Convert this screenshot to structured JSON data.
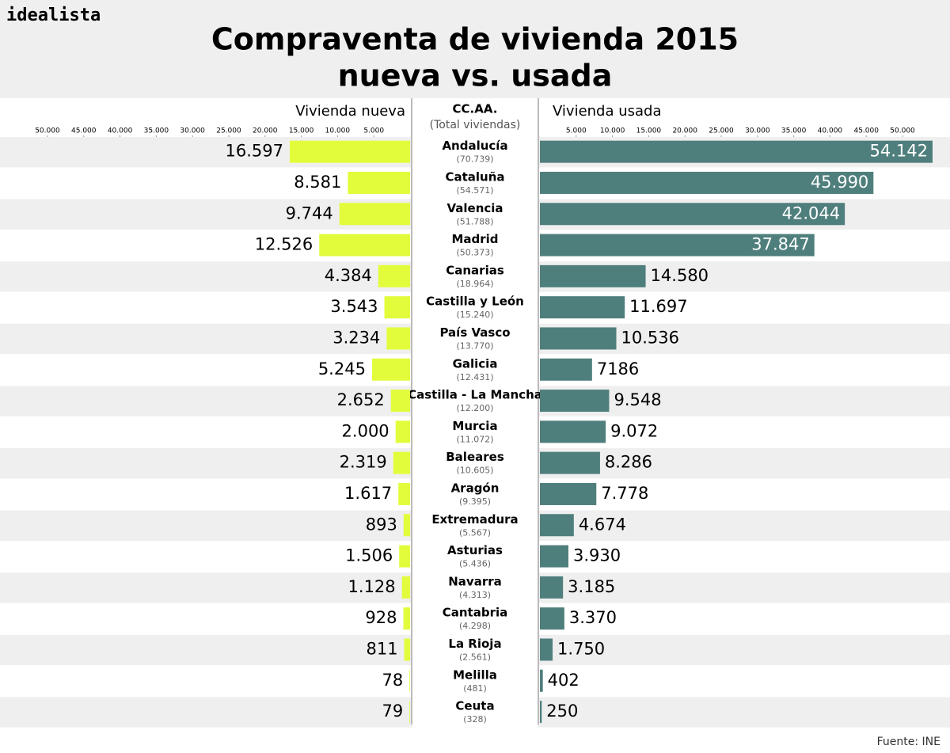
{
  "brand": "idealista",
  "source": "Fuente: INE",
  "chart_data": {
    "type": "bar",
    "orientation": "horizontal",
    "title": "Compraventa de vivienda 2015",
    "subtitle": "nueva vs. usada",
    "category_header": "CC.AA.",
    "totals_header": "(Total viviendas)",
    "categories": [
      "Andalucía",
      "Cataluña",
      "Valencia",
      "Madrid",
      "Canarias",
      "Castilla y León",
      "País Vasco",
      "Galicia",
      "Castilla - La Mancha",
      "Murcia",
      "Baleares",
      "Aragón",
      "Extremadura",
      "Asturias",
      "Navarra",
      "Cantabria",
      "La Rioja",
      "Melilla",
      "Ceuta"
    ],
    "totals": [
      "(70.739)",
      "(54.571)",
      "(51.788)",
      "(50.373)",
      "(18.964)",
      "(15.240)",
      "(13.770)",
      "(12.431)",
      "(12.200)",
      "(11.072)",
      "(10.605)",
      "(9.395)",
      "(5.567)",
      "(5.436)",
      "(4.313)",
      "(4.298)",
      "(2.561)",
      "(481)",
      "(328)"
    ],
    "series": [
      {
        "name": "Vivienda nueva",
        "color": "#e2fc3b",
        "side": "left",
        "values": [
          16597,
          8581,
          9744,
          12526,
          4384,
          3543,
          3234,
          5245,
          2652,
          2000,
          2319,
          1617,
          893,
          1506,
          1128,
          928,
          811,
          78,
          79
        ],
        "value_labels": [
          "16.597",
          "8.581",
          "9.744",
          "12.526",
          "4.384",
          "3.543",
          "3.234",
          "5.245",
          "2.652",
          "2.000",
          "2.319",
          "1.617",
          "893",
          "1.506",
          "1.128",
          "928",
          "811",
          "78",
          "79"
        ]
      },
      {
        "name": "Vivienda usada",
        "color": "#4f7f7d",
        "side": "right",
        "values": [
          54142,
          45990,
          42044,
          37847,
          14580,
          11697,
          10536,
          7186,
          9548,
          9072,
          8286,
          7778,
          4674,
          3930,
          3185,
          3370,
          1750,
          402,
          250
        ],
        "value_labels": [
          "54.142",
          "45.990",
          "42.044",
          "37.847",
          "14.580",
          "11.697",
          "10.536",
          "7186",
          "9.548",
          "9.072",
          "8.286",
          "7.778",
          "4.674",
          "3.930",
          "3.185",
          "3.370",
          "1.750",
          "402",
          "250"
        ]
      }
    ],
    "xlim": [
      0,
      56000
    ],
    "xticks": [
      {
        "value": 5000,
        "label": "5.000"
      },
      {
        "value": 10000,
        "label": "10.000"
      },
      {
        "value": 15000,
        "label": "15.000"
      },
      {
        "value": 20000,
        "label": "20.000"
      },
      {
        "value": 25000,
        "label": "25.000"
      },
      {
        "value": 30000,
        "label": "30.000"
      },
      {
        "value": 35000,
        "label": "35.000"
      },
      {
        "value": 40000,
        "label": "40.000"
      },
      {
        "value": 45000,
        "label": "45.000"
      },
      {
        "value": 50000,
        "label": "50.000"
      }
    ]
  }
}
